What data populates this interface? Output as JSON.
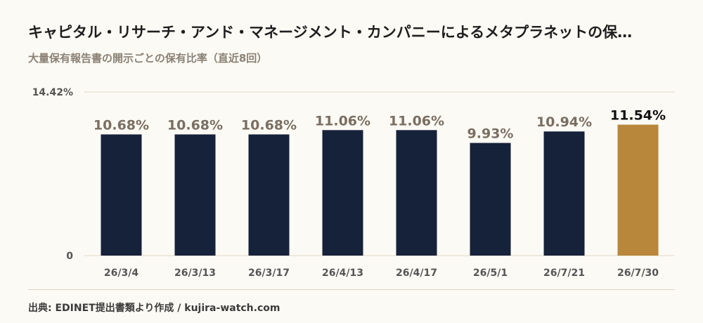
{
  "header": {
    "title": "キャピタル・リサーチ・アンド・マネージメント・カンパニーによるメタプラネットの保…",
    "subtitle": "大量保有報告書の開示ごとの保有比率（直近8回）"
  },
  "footer": {
    "source": "出典: EDINET提出書類より作成 / kujira-watch.com"
  },
  "colors": {
    "bar": "#16213a",
    "highlight": "#b8873c",
    "value_label": "#7a6e62",
    "highlight_label": "#111111",
    "axis_label": "#555555",
    "gridline": "#ded8c8"
  },
  "chart_data": {
    "type": "bar",
    "title": "大量保有報告書の開示ごとの保有比率（直近8回）",
    "categories": [
      "26/3/4",
      "26/3/13",
      "26/3/17",
      "26/4/13",
      "26/4/17",
      "26/5/1",
      "26/7/21",
      "26/7/30"
    ],
    "values": [
      10.68,
      10.68,
      10.68,
      11.06,
      11.06,
      9.93,
      10.94,
      11.54
    ],
    "value_labels": [
      "10.68%",
      "10.68%",
      "10.68%",
      "11.06%",
      "11.06%",
      "9.93%",
      "10.94%",
      "11.54%"
    ],
    "highlight_index": 7,
    "ylim": [
      0,
      14.42
    ],
    "yticks": [
      0,
      14.42
    ],
    "ytick_labels": [
      "0",
      "14.42%"
    ],
    "grid": true
  }
}
